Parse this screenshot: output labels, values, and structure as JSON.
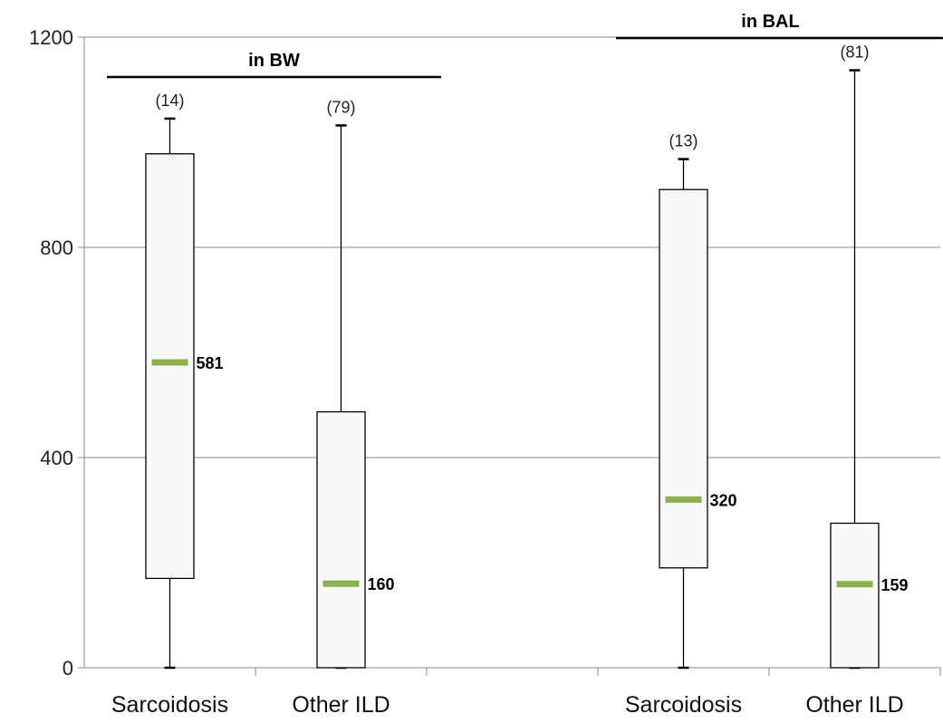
{
  "chart_data": {
    "type": "boxplot",
    "ylim": [
      0,
      1200
    ],
    "yticks": [
      "0",
      "400",
      "800",
      "1200"
    ],
    "grid": true,
    "median_color": "#8db04a",
    "box_fill": "#f8f8f8",
    "groups": [
      {
        "label": "in BW",
        "categories": [
          "Sarcoidosis",
          "Other ILD"
        ]
      },
      {
        "label": "in BAL",
        "categories": [
          "Sarcoidosis",
          "Other ILD"
        ]
      }
    ],
    "boxes": [
      {
        "category": "Sarcoidosis",
        "group": "in BW",
        "n": "(14)",
        "min": 0,
        "q1": 170,
        "median": 581,
        "q3": 978,
        "max": 1045,
        "median_label": "581"
      },
      {
        "category": "Other ILD",
        "group": "in BW",
        "n": "(79)",
        "min": 0,
        "q1": 0,
        "median": 160,
        "q3": 487,
        "max": 1032,
        "median_label": "160"
      },
      {
        "category": "Sarcoidosis",
        "group": "in BAL",
        "n": "(13)",
        "min": 0,
        "q1": 190,
        "median": 320,
        "q3": 910,
        "max": 968,
        "median_label": "320"
      },
      {
        "category": "Other ILD",
        "group": "in BAL",
        "n": "(81)",
        "min": 0,
        "q1": 0,
        "median": 159,
        "q3": 275,
        "max": 1137,
        "median_label": "159"
      }
    ]
  }
}
